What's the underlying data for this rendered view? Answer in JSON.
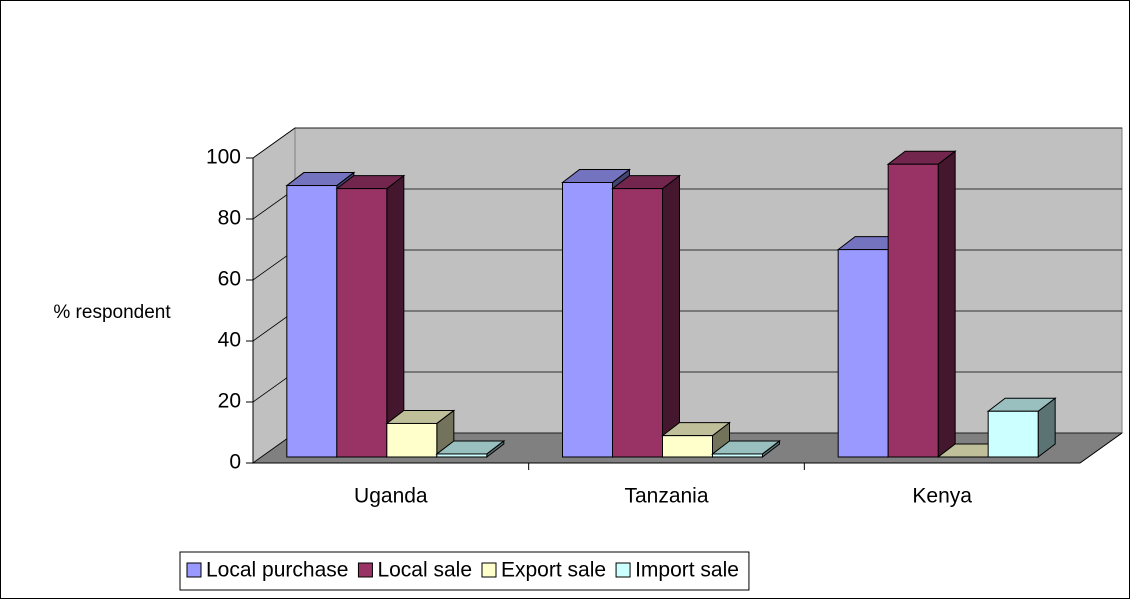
{
  "chart_data": {
    "type": "bar3d",
    "y_label": "% respondent",
    "categories": [
      "Uganda",
      "Tanzania",
      "Kenya"
    ],
    "series": [
      {
        "name": "Local purchase",
        "color": "#9999ff",
        "values": [
          89,
          90,
          68
        ]
      },
      {
        "name": "Local sale",
        "color": "#993366",
        "values": [
          88,
          88,
          96
        ]
      },
      {
        "name": "Export sale",
        "color": "#ffffcc",
        "values": [
          11,
          7,
          0
        ]
      },
      {
        "name": "Import sale",
        "color": "#ccffff",
        "values": [
          1,
          1,
          15
        ]
      }
    ],
    "ylim": [
      0,
      100
    ],
    "yticks": [
      0,
      20,
      40,
      60,
      80,
      100
    ],
    "grid": true,
    "legend": "bottom"
  }
}
